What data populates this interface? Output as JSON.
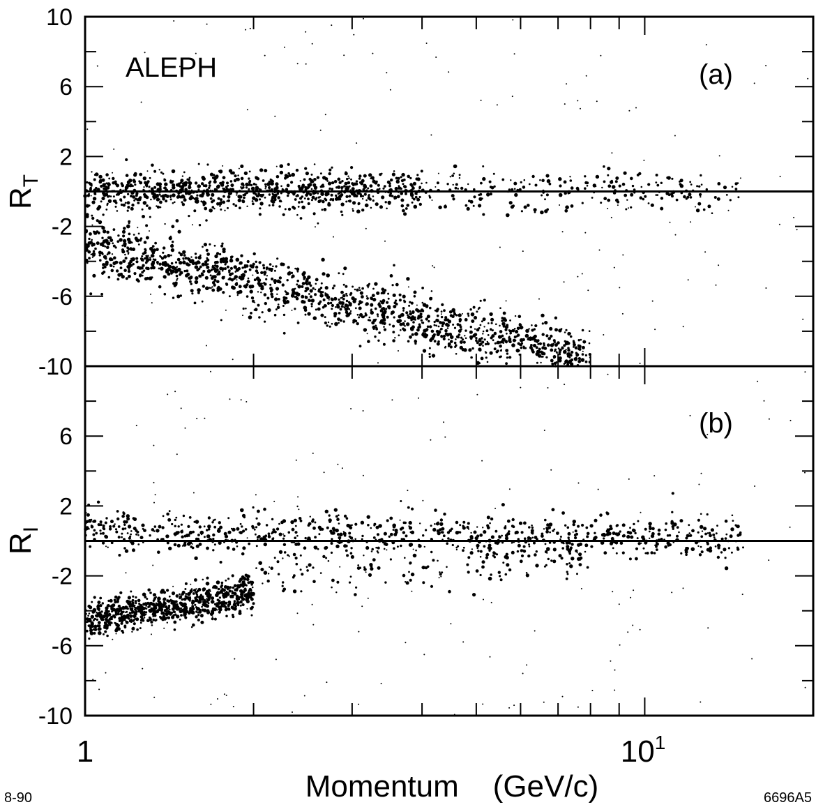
{
  "figure_note_left": "8-90",
  "figure_note_right": "6696A5",
  "chart_data": [
    {
      "type": "scatter",
      "panel_label": "(a)",
      "annotation": "ALEPH",
      "ylabel": "R",
      "ylabel_sub": "T",
      "xlabel": "",
      "xscale": "log",
      "xlim": [
        1,
        20
      ],
      "ylim": [
        -10,
        10
      ],
      "yticks": [
        -10,
        -6,
        -2,
        2,
        6,
        10
      ],
      "yticklabels": [
        "-10",
        "-6",
        "-2",
        "2",
        "6",
        "10"
      ],
      "reference_line_y": 0,
      "bands": [
        {
          "name": "",
          "start": [
            1.0,
            -3.0
          ],
          "end": [
            8.0,
            -9.6
          ],
          "width_y": 1.6,
          "density": 1.0
        },
        {
          "name": "",
          "start": [
            1.0,
            0.0
          ],
          "end": [
            4.0,
            0.0
          ],
          "width_y": 1.1,
          "density": 0.6
        },
        {
          "name": "",
          "start": [
            4.0,
            0.0
          ],
          "end": [
            15.0,
            0.0
          ],
          "width_y": 1.2,
          "density": 0.15
        }
      ]
    },
    {
      "type": "scatter",
      "panel_label": "(b)",
      "ylabel": "R",
      "ylabel_sub": "I",
      "xlabel": "Momentum    (GeV/c)",
      "xscale": "log",
      "xlim": [
        1,
        20
      ],
      "ylim": [
        -10,
        10
      ],
      "yticks": [
        -10,
        -6,
        -2,
        2,
        6
      ],
      "yticklabels": [
        "-10",
        "-6",
        "-2",
        "2",
        "6"
      ],
      "xticks": [
        1,
        10
      ],
      "xticklabels": [
        "1",
        "10"
      ],
      "xticklabel_10_exponent": "1",
      "reference_line_y": 0,
      "bands": [
        {
          "name": "",
          "start": [
            1.0,
            0.6
          ],
          "end": [
            15.0,
            0.1
          ],
          "width_y": 1.2,
          "density": 0.55
        },
        {
          "name": "",
          "start": [
            1.0,
            -4.5
          ],
          "end": [
            2.0,
            -3.0
          ],
          "width_y": 1.0,
          "density": 0.55
        },
        {
          "name": "",
          "start": [
            2.0,
            -2.0
          ],
          "end": [
            8.0,
            -1.0
          ],
          "width_y": 1.6,
          "density": 0.12
        }
      ]
    }
  ]
}
